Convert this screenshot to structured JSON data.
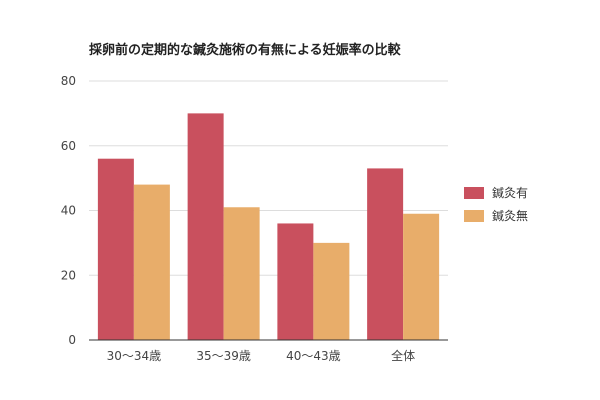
{
  "chart_data": {
    "type": "bar",
    "title": "採卵前の定期的な鍼灸施術の有無による妊娠率の比較",
    "xlabel": "",
    "ylabel": "",
    "categories": [
      "30〜34歳",
      "35〜39歳",
      "40〜43歳",
      "全体"
    ],
    "series": [
      {
        "name": "鍼灸有",
        "values": [
          56,
          70,
          36,
          53
        ],
        "color": "#c9505e"
      },
      {
        "name": "鍼灸無",
        "values": [
          48,
          41,
          30,
          39
        ],
        "color": "#e8ad6a"
      }
    ],
    "ylim": [
      0,
      80
    ],
    "yticks": [
      0,
      20,
      40,
      60,
      80
    ],
    "grid": true,
    "legend_position": "right"
  }
}
